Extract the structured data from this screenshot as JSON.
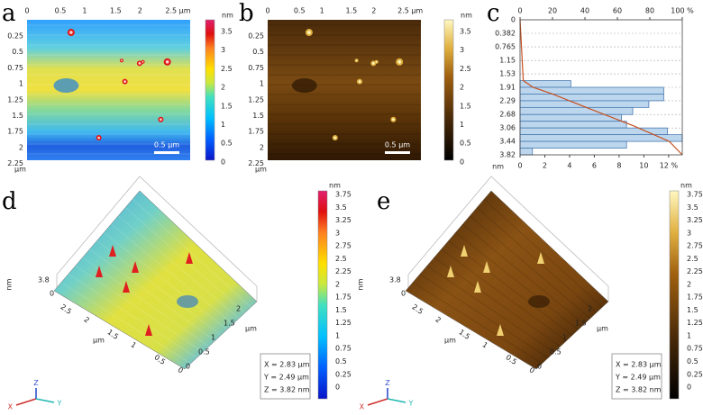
{
  "panels": [
    {
      "label": "a",
      "x_ticks": [
        "0",
        "0.5",
        "1",
        "1.5",
        "2",
        "2.5 µm"
      ],
      "y_ticks": [
        "0.25",
        "0.5",
        "0.75",
        "1",
        "1.25",
        "1.5",
        "1.75",
        "2",
        "2.25"
      ],
      "y_unit": "µm",
      "colorbar_unit": "nm",
      "colorbar_ticks": [
        "3.5",
        "3",
        "2.5",
        "2",
        "1.5",
        "1",
        "0.5",
        "0"
      ],
      "scale_bar": "0.5 µm"
    },
    {
      "label": "b",
      "x_ticks": [
        "0",
        "0.5",
        "1",
        "1.5",
        "2",
        "2.5 µm"
      ],
      "y_ticks": [
        "0.25",
        "0.5",
        "0.75",
        "1",
        "1.25",
        "1.5",
        "1.75",
        "2",
        "2.25"
      ],
      "y_unit": "µm",
      "colorbar_unit": "nm",
      "colorbar_ticks": [
        "3.5",
        "3",
        "2.5",
        "2",
        "1.5",
        "1",
        "0.5",
        "0"
      ],
      "scale_bar": "0.5 µm"
    },
    {
      "label": "c"
    },
    {
      "label": "d",
      "z_max": "3.8",
      "z_unit": "nm",
      "z_zero": "0",
      "x_ticks": [
        "2.5",
        "2",
        "1.5",
        "1",
        "0.5",
        "0"
      ],
      "x_unit": "µm",
      "y_ticks": [
        "2",
        "1.5",
        "1",
        "0.5",
        "0"
      ],
      "y_unit": "µm",
      "colorbar_unit": "nm",
      "colorbar_ticks": [
        "3.75",
        "3.5",
        "3.25",
        "3",
        "2.75",
        "2.5",
        "2.25",
        "2",
        "1.75",
        "1.5",
        "1.25",
        "1",
        "0.75",
        "0.5",
        "0.25",
        "0"
      ],
      "info": [
        "X = 2.83 µm",
        "Y = 2.49 µm",
        "Z = 3.82 nm"
      ],
      "axes": [
        "X",
        "Z",
        "Y"
      ]
    },
    {
      "label": "e",
      "z_max": "3.8",
      "z_unit": "nm",
      "z_zero": "0",
      "x_ticks": [
        "2.5",
        "2",
        "1.5",
        "1",
        "0.5",
        "0"
      ],
      "x_unit": "µm",
      "y_ticks": [
        "2",
        "1.5",
        "1",
        "0.5",
        "0"
      ],
      "y_unit": "µm",
      "colorbar_unit": "nm",
      "colorbar_ticks": [
        "3.75",
        "3.5",
        "3.25",
        "3",
        "2.75",
        "2.5",
        "2.25",
        "2",
        "1.75",
        "1.5",
        "1.25",
        "1",
        "0.75",
        "0.5",
        "0.25",
        "0"
      ],
      "info": [
        "X = 2.83 µm",
        "Y = 2.49 µm",
        "Z = 3.82 nm"
      ],
      "axes": [
        "X",
        "Z",
        "Y"
      ]
    }
  ],
  "chart_data": {
    "type": "histogram",
    "orientation": "horizontal",
    "color": "#bcd6ee",
    "bins": [
      1.72,
      1.91,
      2.1,
      2.29,
      2.48,
      2.68,
      2.87,
      3.06,
      3.25,
      3.44,
      3.63,
      3.82
    ],
    "values": [
      4.1,
      11.6,
      11.6,
      10.4,
      9.1,
      8.2,
      8.6,
      11.9,
      13.1,
      8.6,
      1.0
    ],
    "y_label": "nm",
    "ylim": [
      0,
      3.82
    ],
    "yticks": [
      0,
      0.382,
      0.765,
      1.15,
      1.53,
      1.91,
      2.29,
      2.68,
      3.06,
      3.44,
      3.82
    ],
    "xlim": [
      0,
      13.1
    ],
    "xticks": [
      0,
      2,
      4,
      6,
      8,
      10,
      {
        "value": 12,
        "label": "12 %"
      }
    ],
    "x2lim": [
      0,
      100
    ],
    "x2ticks": [
      0,
      20,
      40,
      60,
      80,
      {
        "value": 100,
        "label": "100 %"
      }
    ],
    "grid": true,
    "cumulative": {
      "color": "#c8501e",
      "depth": [
        0,
        1.72,
        1.91,
        2.1,
        2.5,
        3.0,
        3.44,
        3.82
      ],
      "percent": [
        0,
        2,
        8,
        20,
        42,
        70,
        92,
        100
      ]
    }
  }
}
